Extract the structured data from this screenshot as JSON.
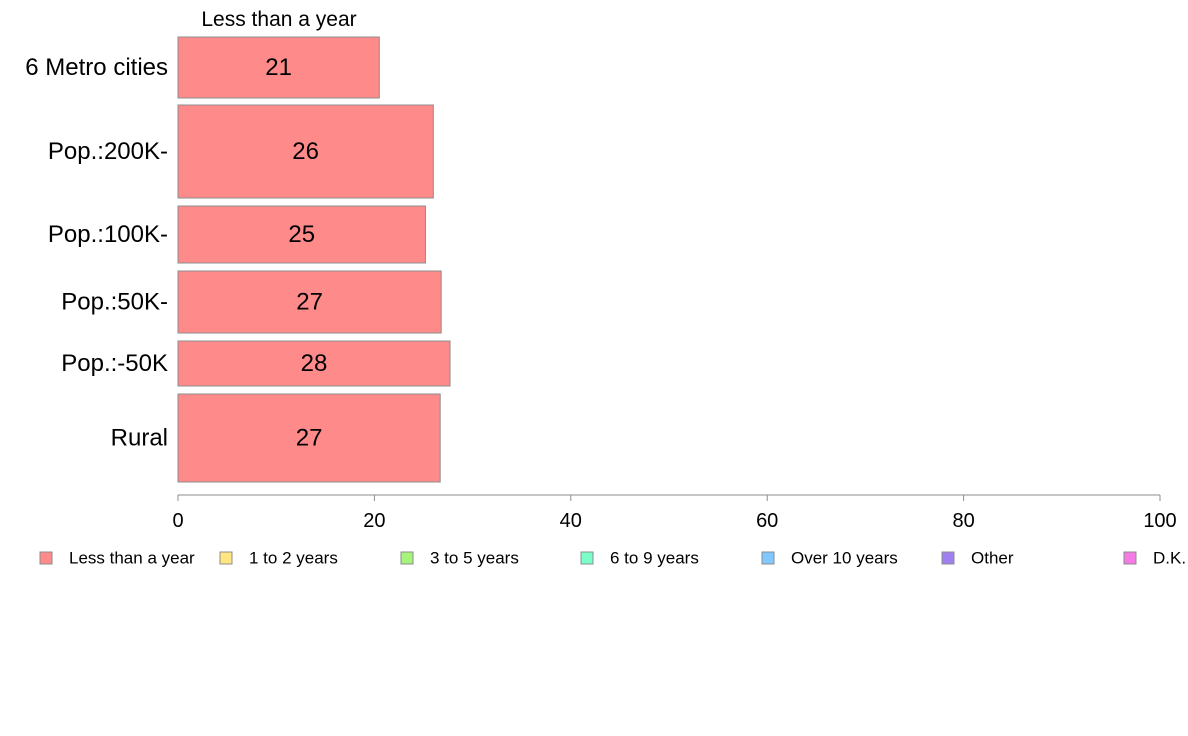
{
  "chart_data": {
    "type": "bar",
    "orientation": "horizontal",
    "stacked": true,
    "column_header": "Less than a year",
    "categories": [
      "6 Metro cities",
      "Pop.:200K-",
      "Pop.:100K-",
      "Pop.:50K-",
      "Pop.:-50K",
      "Rural"
    ],
    "series": [
      {
        "name": "Less than a year",
        "values": [
          20.5,
          26.0,
          25.2,
          26.8,
          27.7,
          26.7
        ],
        "labels": [
          "21",
          "26",
          "25",
          "27",
          "28",
          "27"
        ],
        "color": "#ff8a8a"
      }
    ],
    "legend": [
      {
        "name": "Less than a year",
        "color": "#ff8a8a"
      },
      {
        "name": "1 to 2 years",
        "color": "#ffe680"
      },
      {
        "name": "3 to 5 years",
        "color": "#a6f57a"
      },
      {
        "name": "6 to 9 years",
        "color": "#7affc8"
      },
      {
        "name": "Over 10 years",
        "color": "#80c8ff"
      },
      {
        "name": "Other",
        "color": "#a080f0"
      },
      {
        "name": "D.K.",
        "color": "#f57ae6"
      }
    ],
    "xlim": [
      0,
      100
    ],
    "xticks": [
      0,
      20,
      40,
      60,
      80,
      100
    ],
    "legend_position": "bottom",
    "grid": false
  }
}
